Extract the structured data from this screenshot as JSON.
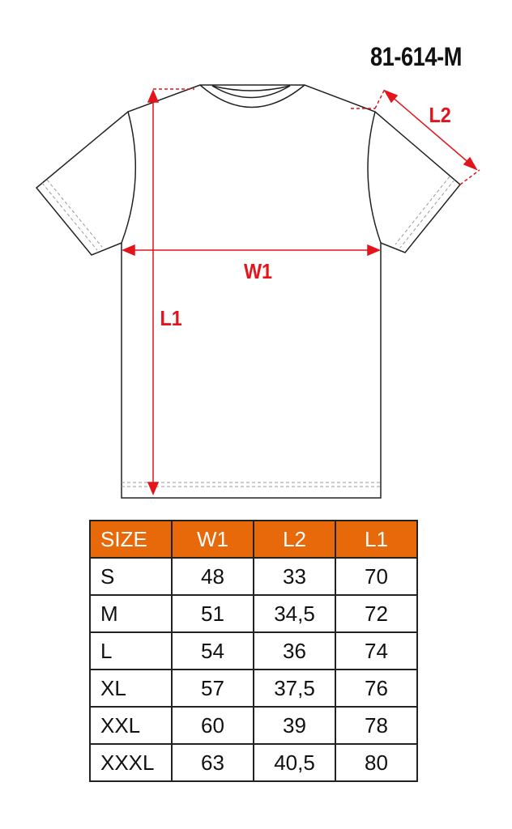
{
  "product_code": "81-614-M",
  "dimension_labels": {
    "w1": "W1",
    "l1": "L1",
    "l2": "L2"
  },
  "colors": {
    "header": "#e8690a",
    "dimension": "#e3141b"
  },
  "table": {
    "headers": [
      "SIZE",
      "W1",
      "L2",
      "L1"
    ],
    "rows": [
      [
        "S",
        "48",
        "33",
        "70"
      ],
      [
        "M",
        "51",
        "34,5",
        "72"
      ],
      [
        "L",
        "54",
        "36",
        "74"
      ],
      [
        "XL",
        "57",
        "37,5",
        "76"
      ],
      [
        "XXL",
        "60",
        "39",
        "78"
      ],
      [
        "XXXL",
        "63",
        "40,5",
        "80"
      ]
    ]
  }
}
